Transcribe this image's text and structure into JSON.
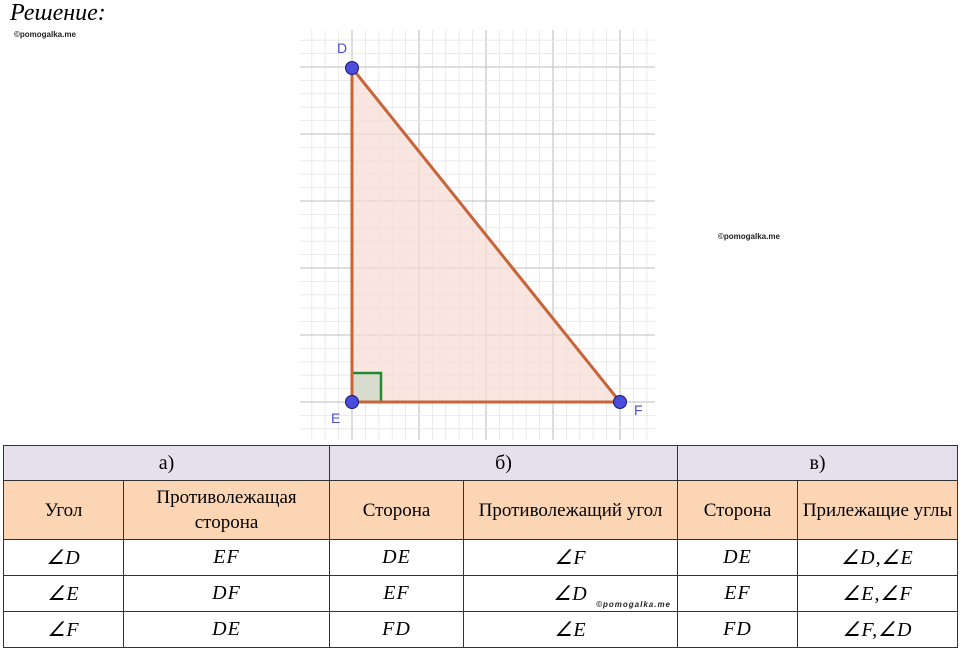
{
  "heading": "Решение:",
  "watermarks": [
    "©pomogalka.me",
    "©pomogalka.me",
    "©pomogalka.me"
  ],
  "figure": {
    "points": [
      {
        "name": "D",
        "color": "#4b4bdc"
      },
      {
        "name": "E",
        "color": "#4b4bdc"
      },
      {
        "name": "F",
        "color": "#4b4bdc"
      }
    ],
    "line_color": "#c8643a",
    "fill_color": "#f6dcd4",
    "right_angle_color": "#1f8a2e"
  },
  "table": {
    "parts": [
      "а)",
      "б)",
      "в)"
    ],
    "headers": [
      "Угол",
      "Противолежащая сторона",
      "Сторона",
      "Противолежащий угол",
      "Сторона",
      "Прилежащие углы"
    ],
    "rows": [
      [
        "∠D",
        "EF",
        "DE",
        "∠F",
        "DE",
        "∠D,∠E"
      ],
      [
        "∠E",
        "DF",
        "EF",
        "∠D",
        "EF",
        "∠E,∠F"
      ],
      [
        "∠F",
        "DE",
        "FD",
        "∠E",
        "FD",
        "∠F,∠D"
      ]
    ]
  }
}
